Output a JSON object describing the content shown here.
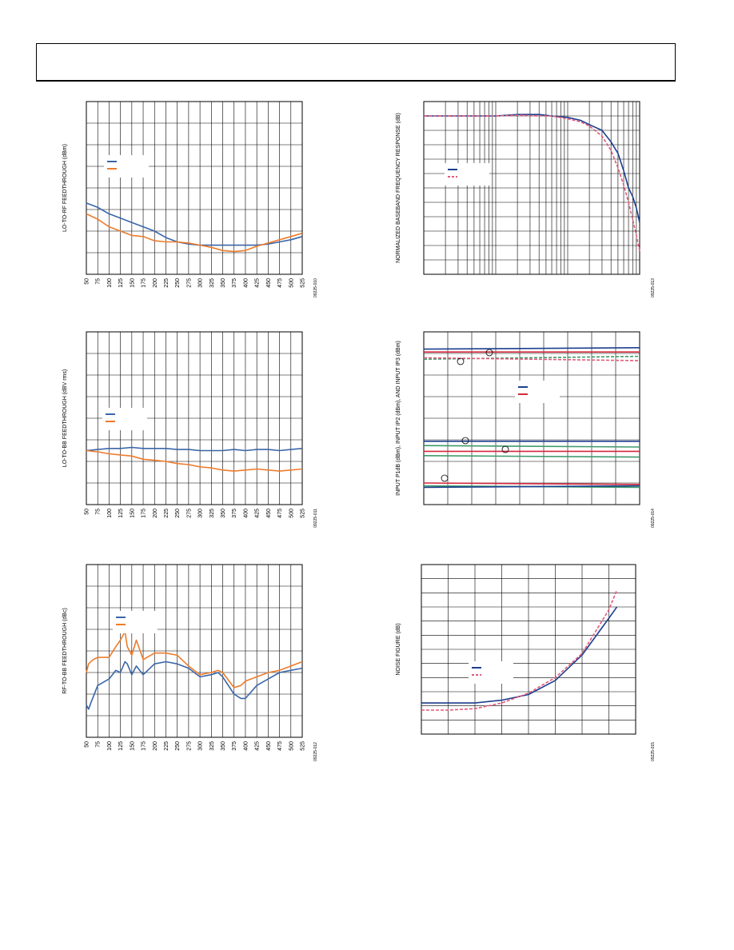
{
  "page": {
    "header_text": ""
  },
  "colors": {
    "blue": "#3a66a8",
    "orange": "#ee7c2c",
    "navy": "#1c3f8f",
    "pink": "#e05a7a",
    "green": "#3f9a6a",
    "red": "#d4283c",
    "grid": "#000000"
  },
  "chart_data": [
    {
      "id": "chart-lo-rf",
      "type": "line",
      "ylabel": "LO-TO-RF FEEDTHROUGH (dBm)",
      "figure_id": "09225-010",
      "x_tick_labels": [
        "50",
        "75",
        "100",
        "125",
        "150",
        "175",
        "200",
        "225",
        "250",
        "275",
        "300",
        "325",
        "350",
        "375",
        "400",
        "425",
        "450",
        "475",
        "500",
        "525"
      ],
      "xlim": [
        50,
        525
      ],
      "ylim": [
        0,
        8
      ],
      "series": [
        {
          "color": "blue",
          "x": [
            50,
            75,
            100,
            125,
            150,
            175,
            200,
            225,
            250,
            275,
            300,
            325,
            350,
            375,
            400,
            425,
            450,
            475,
            500,
            525
          ],
          "y": [
            3.3,
            3.1,
            2.8,
            2.6,
            2.4,
            2.2,
            2.0,
            1.7,
            1.5,
            1.4,
            1.35,
            1.35,
            1.35,
            1.35,
            1.35,
            1.35,
            1.4,
            1.5,
            1.6,
            1.75
          ]
        },
        {
          "color": "orange",
          "x": [
            50,
            75,
            100,
            125,
            150,
            175,
            200,
            225,
            250,
            275,
            300,
            325,
            350,
            375,
            400,
            425,
            450,
            475,
            500,
            525
          ],
          "y": [
            2.8,
            2.55,
            2.2,
            2.0,
            1.8,
            1.75,
            1.55,
            1.5,
            1.5,
            1.45,
            1.35,
            1.25,
            1.1,
            1.05,
            1.1,
            1.3,
            1.45,
            1.6,
            1.75,
            1.9
          ]
        }
      ]
    },
    {
      "id": "chart-lo-bb",
      "type": "line",
      "ylabel": "LO-TO-BB FEEDTHROUGH (dBV rms)",
      "figure_id": "09225-011",
      "x_tick_labels": [
        "50",
        "75",
        "100",
        "125",
        "150",
        "175",
        "200",
        "225",
        "250",
        "275",
        "300",
        "325",
        "350",
        "375",
        "400",
        "425",
        "450",
        "475",
        "500",
        "525"
      ],
      "xlim": [
        50,
        525
      ],
      "ylim": [
        0,
        8
      ],
      "series": [
        {
          "color": "blue",
          "x": [
            50,
            75,
            100,
            125,
            150,
            175,
            200,
            225,
            250,
            275,
            300,
            325,
            350,
            375,
            400,
            425,
            450,
            475,
            500,
            525
          ],
          "y": [
            2.5,
            2.55,
            2.6,
            2.6,
            2.65,
            2.6,
            2.6,
            2.6,
            2.55,
            2.55,
            2.5,
            2.5,
            2.5,
            2.55,
            2.5,
            2.55,
            2.55,
            2.5,
            2.55,
            2.6
          ]
        },
        {
          "color": "orange",
          "x": [
            50,
            75,
            100,
            125,
            150,
            175,
            200,
            225,
            250,
            275,
            300,
            325,
            350,
            375,
            400,
            425,
            450,
            475,
            500,
            525
          ],
          "y": [
            2.5,
            2.45,
            2.35,
            2.3,
            2.25,
            2.1,
            2.05,
            2.0,
            1.9,
            1.85,
            1.75,
            1.7,
            1.6,
            1.55,
            1.6,
            1.65,
            1.6,
            1.55,
            1.6,
            1.65
          ]
        }
      ]
    },
    {
      "id": "chart-rf-bb",
      "type": "line",
      "ylabel": "RF-TO-BB FEEDTHROUGH (dBc)",
      "figure_id": "09225-012",
      "x_tick_labels": [
        "50",
        "75",
        "100",
        "125",
        "150",
        "175",
        "200",
        "225",
        "250",
        "275",
        "300",
        "325",
        "350",
        "375",
        "400",
        "425",
        "450",
        "475",
        "500",
        "525"
      ],
      "xlim": [
        50,
        525
      ],
      "ylim": [
        0,
        8
      ],
      "series": [
        {
          "color": "blue",
          "x": [
            50,
            55,
            60,
            75,
            100,
            115,
            125,
            135,
            140,
            150,
            160,
            175,
            200,
            225,
            250,
            275,
            300,
            325,
            340,
            350,
            375,
            390,
            400,
            425,
            450,
            475,
            500,
            525
          ],
          "y": [
            1.5,
            1.3,
            1.6,
            2.4,
            2.7,
            3.1,
            3.0,
            3.5,
            3.4,
            2.9,
            3.3,
            2.9,
            3.4,
            3.5,
            3.4,
            3.2,
            2.8,
            2.9,
            3.0,
            2.8,
            2.0,
            1.8,
            1.8,
            2.4,
            2.7,
            3.0,
            3.1,
            3.2
          ]
        },
        {
          "color": "orange",
          "x": [
            50,
            55,
            65,
            75,
            100,
            115,
            125,
            135,
            140,
            150,
            160,
            175,
            200,
            225,
            250,
            275,
            300,
            325,
            340,
            350,
            375,
            390,
            400,
            425,
            450,
            475,
            500,
            525
          ],
          "y": [
            3.0,
            3.4,
            3.6,
            3.7,
            3.7,
            4.2,
            4.5,
            4.9,
            4.2,
            3.8,
            4.5,
            3.6,
            3.9,
            3.9,
            3.8,
            3.3,
            2.9,
            3.0,
            3.1,
            3.0,
            2.3,
            2.4,
            2.6,
            2.8,
            3.0,
            3.1,
            3.3,
            3.5
          ]
        }
      ]
    },
    {
      "id": "chart-bb-response",
      "type": "line",
      "ylabel": "NORMALIZED BASEBAND FREQUENCY RESPONSE (dB)",
      "figure_id": "09225-013",
      "x_tick_labels": [],
      "x_scale": "log",
      "xlim": [
        1,
        1000
      ],
      "ylim": [
        0,
        12
      ],
      "series": [
        {
          "color": "navy",
          "x": [
            1,
            5,
            10,
            20,
            40,
            60,
            100,
            150,
            200,
            300,
            400,
            500,
            600,
            700,
            800,
            900,
            1000
          ],
          "y": [
            11,
            11,
            11,
            11.1,
            11.1,
            11.0,
            10.9,
            10.7,
            10.4,
            10.0,
            9.2,
            8.4,
            7.2,
            6.0,
            5.4,
            4.6,
            3.6
          ]
        },
        {
          "color": "pink",
          "dashed": true,
          "x": [
            1,
            5,
            10,
            20,
            40,
            60,
            100,
            150,
            200,
            300,
            400,
            500,
            600,
            700,
            800,
            900,
            1000
          ],
          "y": [
            11,
            11,
            11,
            11.05,
            11.0,
            11.0,
            10.8,
            10.6,
            10.3,
            9.6,
            8.6,
            7.4,
            6.2,
            5.0,
            3.8,
            2.7,
            1.6
          ]
        }
      ]
    },
    {
      "id": "chart-input-ip",
      "type": "line",
      "ylabel": "INPUT P1dB (dBm), INPUT IP2 (dBm), AND INPUT IP3 (dBm)",
      "figure_id": "09225-014",
      "x_tick_labels": [],
      "xlim": [
        0,
        9
      ],
      "ylim": [
        0,
        12
      ],
      "series": [
        {
          "color": "navy",
          "x": [
            0,
            9
          ],
          "y": [
            10.8,
            10.9
          ]
        },
        {
          "color": "red",
          "x": [
            0,
            9
          ],
          "y": [
            10.6,
            10.6
          ]
        },
        {
          "color": "green",
          "dashed": true,
          "x": [
            0,
            9
          ],
          "y": [
            10.1,
            10.3
          ]
        },
        {
          "color": "pink",
          "dashed": true,
          "x": [
            0,
            9
          ],
          "y": [
            10.2,
            10.0
          ]
        },
        {
          "color": "navy",
          "x": [
            0,
            9
          ],
          "y": [
            4.4,
            4.4
          ]
        },
        {
          "color": "green",
          "x": [
            0,
            9
          ],
          "y": [
            4.1,
            4.0
          ]
        },
        {
          "color": "red",
          "x": [
            0,
            9
          ],
          "y": [
            3.7,
            3.7
          ]
        },
        {
          "color": "green",
          "x": [
            0,
            9
          ],
          "y": [
            3.4,
            3.3
          ]
        },
        {
          "color": "red",
          "x": [
            0,
            9
          ],
          "y": [
            1.5,
            1.4
          ]
        },
        {
          "color": "green",
          "x": [
            0,
            9
          ],
          "y": [
            1.3,
            1.2
          ]
        },
        {
          "color": "navy",
          "x": [
            0,
            9
          ],
          "y": [
            1.2,
            1.3
          ]
        }
      ]
    },
    {
      "id": "chart-noise-figure",
      "type": "line",
      "ylabel": "NOISE FIGURE (dB)",
      "figure_id": "09225-015",
      "x_tick_labels": [],
      "xlim": [
        0,
        8
      ],
      "ylim": [
        0,
        12
      ],
      "series": [
        {
          "color": "navy",
          "x": [
            0,
            1,
            2,
            3,
            4,
            5,
            6,
            7,
            7.3
          ],
          "y": [
            2.2,
            2.2,
            2.2,
            2.4,
            2.8,
            3.8,
            5.6,
            8.2,
            9.0
          ]
        },
        {
          "color": "pink",
          "dashed": true,
          "x": [
            0,
            1,
            2,
            3,
            4,
            5,
            6,
            7,
            7.3
          ],
          "y": [
            1.7,
            1.7,
            1.8,
            2.2,
            2.9,
            4.0,
            5.7,
            8.8,
            10.2
          ]
        }
      ]
    }
  ]
}
